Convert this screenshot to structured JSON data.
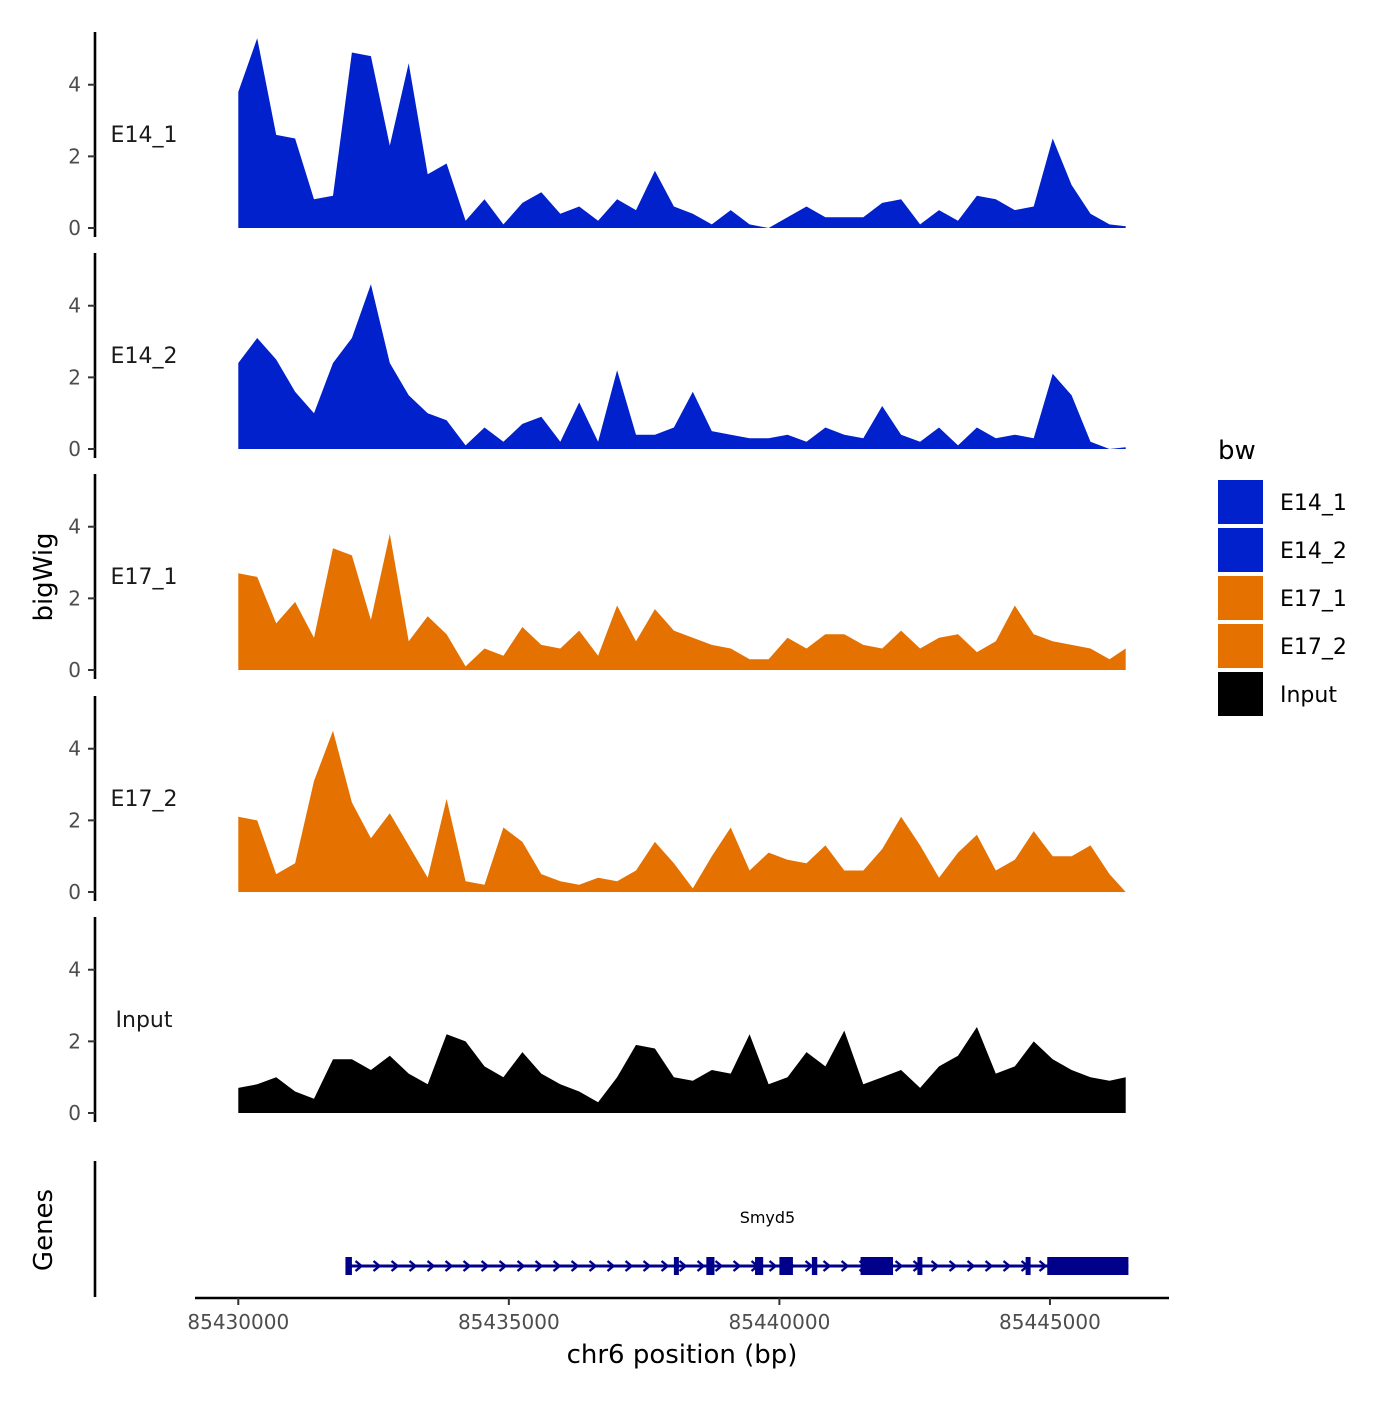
{
  "chart_data": {
    "type": "area",
    "ylabel": "bigWig",
    "xlabel": "chr6 position (bp)",
    "ylim": [
      0,
      5.5
    ],
    "y_ticks": [
      0,
      2,
      4
    ],
    "x_range": [
      85429200,
      85447200
    ],
    "x_ticks": [
      85430000,
      85435000,
      85440000,
      85445000
    ],
    "x_tick_labels": [
      "85430000",
      "85435000",
      "85440000",
      "85445000"
    ],
    "x": [
      85430000,
      85430350,
      85430700,
      85431050,
      85431400,
      85431750,
      85432100,
      85432450,
      85432800,
      85433150,
      85433500,
      85433850,
      85434200,
      85434550,
      85434900,
      85435250,
      85435600,
      85435950,
      85436300,
      85436650,
      85437000,
      85437350,
      85437700,
      85438050,
      85438400,
      85438750,
      85439100,
      85439450,
      85439800,
      85440150,
      85440500,
      85440850,
      85441200,
      85441550,
      85441900,
      85442250,
      85442600,
      85442950,
      85443300,
      85443650,
      85444000,
      85444350,
      85444700,
      85445050,
      85445400,
      85445750,
      85446100,
      85446400
    ],
    "series": [
      {
        "name": "E14_1",
        "color": "#0021cc",
        "values": [
          3.8,
          5.3,
          2.6,
          2.5,
          0.8,
          0.9,
          4.9,
          4.8,
          2.3,
          4.6,
          1.5,
          1.8,
          0.2,
          0.8,
          0.1,
          0.7,
          1.0,
          0.4,
          0.6,
          0.2,
          0.8,
          0.5,
          1.6,
          0.6,
          0.4,
          0.1,
          0.5,
          0.1,
          0.0,
          0.3,
          0.6,
          0.3,
          0.3,
          0.3,
          0.7,
          0.8,
          0.1,
          0.5,
          0.2,
          0.9,
          0.8,
          0.5,
          0.6,
          2.5,
          1.2,
          0.4,
          0.1,
          0.05
        ]
      },
      {
        "name": "E14_2",
        "color": "#0021cc",
        "values": [
          2.4,
          3.1,
          2.5,
          1.6,
          1.0,
          2.4,
          3.1,
          4.6,
          2.4,
          1.5,
          1.0,
          0.8,
          0.1,
          0.6,
          0.2,
          0.7,
          0.9,
          0.2,
          1.3,
          0.2,
          2.2,
          0.4,
          0.4,
          0.6,
          1.6,
          0.5,
          0.4,
          0.3,
          0.3,
          0.4,
          0.2,
          0.6,
          0.4,
          0.3,
          1.2,
          0.4,
          0.2,
          0.6,
          0.1,
          0.6,
          0.3,
          0.4,
          0.3,
          2.1,
          1.5,
          0.2,
          0.0,
          0.05
        ]
      },
      {
        "name": "E17_1",
        "color": "#e57200",
        "values": [
          2.7,
          2.6,
          1.3,
          1.9,
          0.9,
          3.4,
          3.2,
          1.4,
          3.8,
          0.8,
          1.5,
          1.0,
          0.1,
          0.6,
          0.4,
          1.2,
          0.7,
          0.6,
          1.1,
          0.4,
          1.8,
          0.8,
          1.7,
          1.1,
          0.9,
          0.7,
          0.6,
          0.3,
          0.3,
          0.9,
          0.6,
          1.0,
          1.0,
          0.7,
          0.6,
          1.1,
          0.6,
          0.9,
          1.0,
          0.5,
          0.8,
          1.8,
          1.0,
          0.8,
          0.7,
          0.6,
          0.3,
          0.6
        ]
      },
      {
        "name": "E17_2",
        "color": "#e57200",
        "values": [
          2.1,
          2.0,
          0.5,
          0.8,
          3.1,
          4.5,
          2.5,
          1.5,
          2.2,
          1.3,
          0.4,
          2.6,
          0.3,
          0.2,
          1.8,
          1.4,
          0.5,
          0.3,
          0.2,
          0.4,
          0.3,
          0.6,
          1.4,
          0.8,
          0.1,
          1.0,
          1.8,
          0.6,
          1.1,
          0.9,
          0.8,
          1.3,
          0.6,
          0.6,
          1.2,
          2.1,
          1.3,
          0.4,
          1.1,
          1.6,
          0.6,
          0.9,
          1.7,
          1.0,
          1.0,
          1.3,
          0.5,
          0.0
        ]
      },
      {
        "name": "Input",
        "color": "#000000",
        "values": [
          0.7,
          0.8,
          1.0,
          0.6,
          0.4,
          1.5,
          1.5,
          1.2,
          1.6,
          1.1,
          0.8,
          2.2,
          2.0,
          1.3,
          1.0,
          1.7,
          1.1,
          0.8,
          0.6,
          0.3,
          1.0,
          1.9,
          1.8,
          1.0,
          0.9,
          1.2,
          1.1,
          2.2,
          0.8,
          1.0,
          1.7,
          1.3,
          2.3,
          0.8,
          1.0,
          1.2,
          0.7,
          1.3,
          1.6,
          2.4,
          1.1,
          1.3,
          2.0,
          1.5,
          1.2,
          1.0,
          0.9,
          1.0
        ]
      }
    ],
    "legend": {
      "title": "bw",
      "entries": [
        {
          "name": "E14_1",
          "color": "#0021cc"
        },
        {
          "name": "E14_2",
          "color": "#0021cc"
        },
        {
          "name": "E17_1",
          "color": "#e57200"
        },
        {
          "name": "E17_2",
          "color": "#e57200"
        },
        {
          "name": "Input",
          "color": "#000000"
        }
      ]
    },
    "genes_panel": {
      "title": "Genes",
      "gene_name": "Smyd5",
      "strand": "+",
      "color": "#00008b",
      "start": 85432000,
      "end": 85446450,
      "exons": [
        [
          85431980,
          85432100
        ],
        [
          85438050,
          85438120
        ],
        [
          85438650,
          85438800
        ],
        [
          85439550,
          85439700
        ],
        [
          85440000,
          85440250
        ],
        [
          85440600,
          85440700
        ],
        [
          85441500,
          85442100
        ],
        [
          85442550,
          85442610
        ],
        [
          85444550,
          85444620
        ],
        [
          85444950,
          85446450
        ]
      ]
    }
  }
}
